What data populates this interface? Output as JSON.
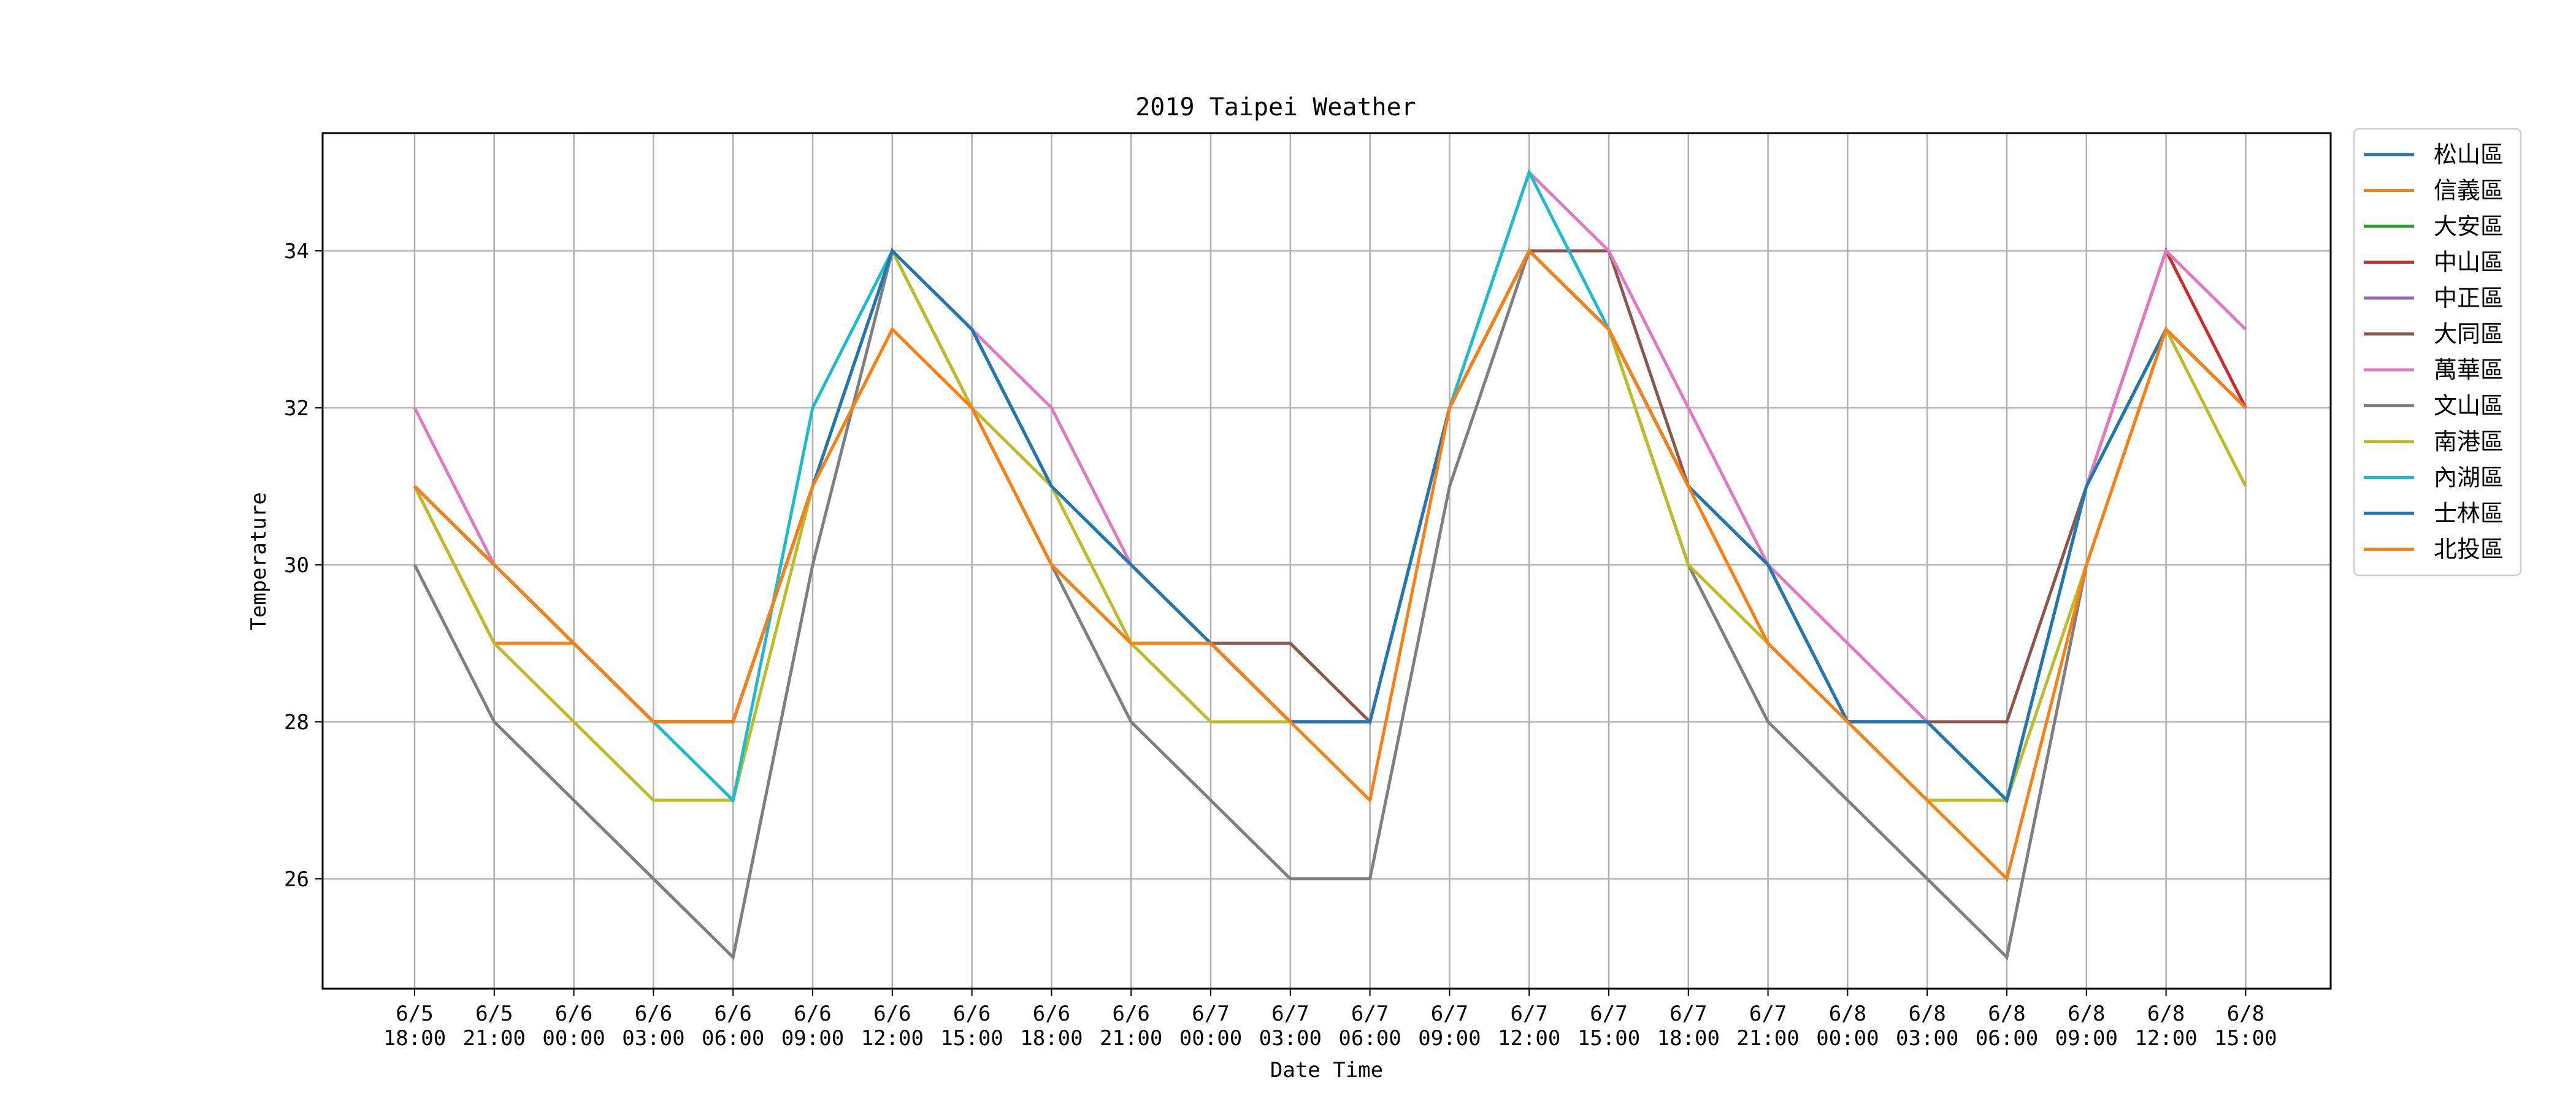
{
  "chart_data": {
    "type": "line",
    "title": "2019 Taipei Weather",
    "xlabel": "Date Time",
    "ylabel": "Temperature",
    "ylim": [
      24.6,
      35.5
    ],
    "yticks": [
      26,
      28,
      30,
      32,
      34
    ],
    "grid": true,
    "legend_position": "outside-top-right",
    "categories": [
      {
        "date": "6/5",
        "time": "18:00"
      },
      {
        "date": "6/5",
        "time": "21:00"
      },
      {
        "date": "6/6",
        "time": "00:00"
      },
      {
        "date": "6/6",
        "time": "03:00"
      },
      {
        "date": "6/6",
        "time": "06:00"
      },
      {
        "date": "6/6",
        "time": "09:00"
      },
      {
        "date": "6/6",
        "time": "12:00"
      },
      {
        "date": "6/6",
        "time": "15:00"
      },
      {
        "date": "6/6",
        "time": "18:00"
      },
      {
        "date": "6/6",
        "time": "21:00"
      },
      {
        "date": "6/7",
        "time": "00:00"
      },
      {
        "date": "6/7",
        "time": "03:00"
      },
      {
        "date": "6/7",
        "time": "06:00"
      },
      {
        "date": "6/7",
        "time": "09:00"
      },
      {
        "date": "6/7",
        "time": "12:00"
      },
      {
        "date": "6/7",
        "time": "15:00"
      },
      {
        "date": "6/7",
        "time": "18:00"
      },
      {
        "date": "6/7",
        "time": "21:00"
      },
      {
        "date": "6/8",
        "time": "00:00"
      },
      {
        "date": "6/8",
        "time": "03:00"
      },
      {
        "date": "6/8",
        "time": "06:00"
      },
      {
        "date": "6/8",
        "time": "09:00"
      },
      {
        "date": "6/8",
        "time": "12:00"
      },
      {
        "date": "6/8",
        "time": "15:00"
      }
    ],
    "series": [
      {
        "name": "松山區",
        "color": "#1f77b4",
        "values": [
          31,
          30,
          29,
          28,
          28,
          31,
          34,
          33,
          31,
          30,
          29,
          28,
          28,
          32,
          34,
          33,
          31,
          30,
          28,
          28,
          27,
          31,
          33,
          32
        ]
      },
      {
        "name": "信義區",
        "color": "#ff7f0e",
        "values": [
          31,
          29,
          29,
          28,
          28,
          31,
          33,
          32,
          30,
          29,
          29,
          28,
          28,
          32,
          34,
          33,
          31,
          29,
          28,
          28,
          27,
          31,
          33,
          32
        ]
      },
      {
        "name": "大安區",
        "color": "#2ca02c",
        "values": [
          31,
          30,
          29,
          28,
          28,
          31,
          34,
          33,
          31,
          30,
          29,
          28,
          28,
          32,
          34,
          33,
          31,
          30,
          28,
          28,
          27,
          31,
          33,
          32
        ]
      },
      {
        "name": "中山區",
        "color": "#d62728",
        "values": [
          31,
          30,
          29,
          28,
          28,
          31,
          34,
          33,
          31,
          30,
          29,
          28,
          28,
          32,
          34,
          33,
          31,
          30,
          28,
          28,
          27,
          31,
          34,
          32
        ]
      },
      {
        "name": "中正區",
        "color": "#9467bd",
        "values": [
          31,
          30,
          29,
          28,
          28,
          31,
          34,
          33,
          31,
          30,
          29,
          28,
          28,
          32,
          34,
          33,
          31,
          30,
          28,
          28,
          27,
          31,
          33,
          32
        ]
      },
      {
        "name": "大同區",
        "color": "#8c564b",
        "values": [
          31,
          30,
          29,
          28,
          28,
          31,
          34,
          33,
          31,
          30,
          29,
          29,
          28,
          32,
          34,
          34,
          31,
          30,
          28,
          28,
          28,
          31,
          33,
          32
        ]
      },
      {
        "name": "萬華區",
        "color": "#e377c2",
        "values": [
          32,
          30,
          29,
          28,
          28,
          31,
          34,
          33,
          32,
          30,
          29,
          28,
          28,
          32,
          35,
          34,
          32,
          30,
          29,
          28,
          27,
          31,
          34,
          33
        ]
      },
      {
        "name": "文山區",
        "color": "#7f7f7f",
        "values": [
          30,
          28,
          27,
          26,
          25,
          30,
          34,
          32,
          30,
          28,
          27,
          26,
          26,
          31,
          34,
          33,
          30,
          28,
          27,
          26,
          25,
          30,
          33,
          32
        ]
      },
      {
        "name": "南港區",
        "color": "#bcbd22",
        "values": [
          31,
          29,
          28,
          27,
          27,
          31,
          34,
          32,
          31,
          29,
          28,
          28,
          28,
          32,
          34,
          33,
          30,
          29,
          28,
          27,
          27,
          30,
          33,
          31
        ]
      },
      {
        "name": "內湖區",
        "color": "#17becf",
        "values": [
          31,
          30,
          29,
          28,
          27,
          32,
          34,
          33,
          31,
          30,
          29,
          28,
          28,
          32,
          35,
          33,
          31,
          30,
          28,
          28,
          27,
          31,
          33,
          32
        ]
      },
      {
        "name": "士林區",
        "color": "#1f77b4",
        "values": [
          31,
          30,
          29,
          28,
          28,
          31,
          34,
          33,
          31,
          30,
          29,
          28,
          28,
          32,
          34,
          33,
          31,
          30,
          28,
          28,
          27,
          31,
          33,
          32
        ]
      },
      {
        "name": "北投區",
        "color": "#ff7f0e",
        "values": [
          31,
          30,
          29,
          28,
          28,
          31,
          33,
          32,
          30,
          29,
          29,
          28,
          27,
          32,
          34,
          33,
          31,
          29,
          28,
          27,
          26,
          30,
          33,
          32
        ]
      }
    ]
  }
}
